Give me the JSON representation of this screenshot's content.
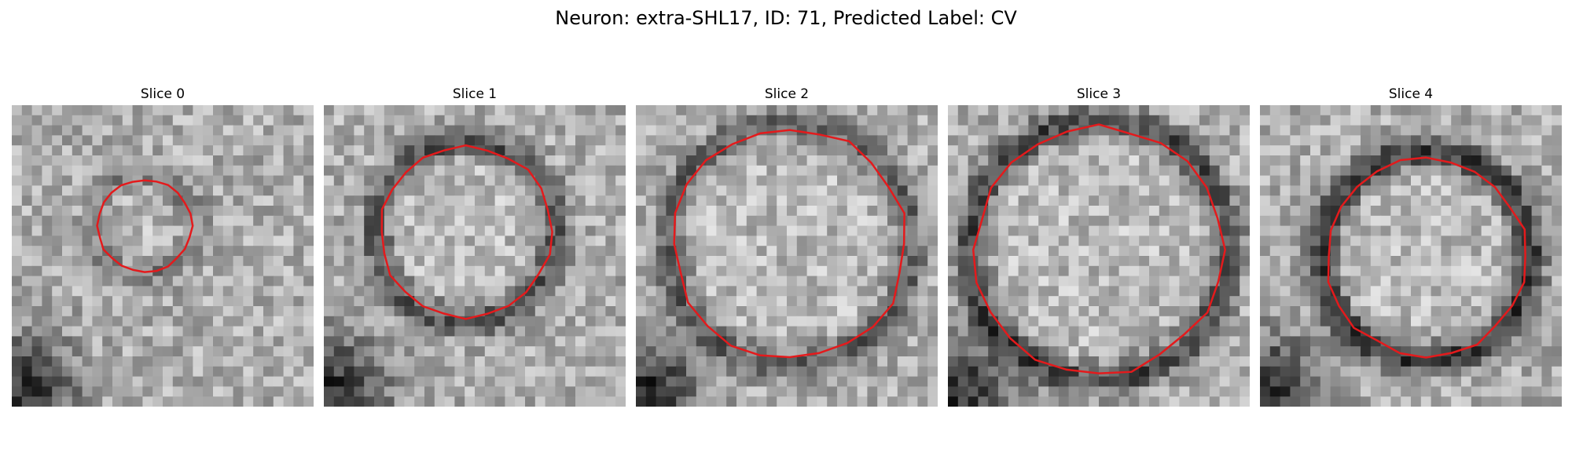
{
  "figure": {
    "title": "Neuron: extra-SHL17, ID: 71, Predicted Label: CV",
    "contour_color": "#e41a1c"
  },
  "panels": [
    {
      "title": "Slice 0",
      "contour_radius": 0.155,
      "contour_cx": 0.44,
      "contour_cy": 0.4,
      "ring_darkness": 0.18
    },
    {
      "title": "Slice 1",
      "contour_radius": 0.285,
      "contour_cx": 0.47,
      "contour_cy": 0.42,
      "ring_darkness": 0.35
    },
    {
      "title": "Slice 2",
      "contour_radius": 0.385,
      "contour_cx": 0.51,
      "contour_cy": 0.46,
      "ring_darkness": 0.3
    },
    {
      "title": "Slice 3",
      "contour_radius": 0.41,
      "contour_cx": 0.5,
      "contour_cy": 0.48,
      "ring_darkness": 0.4
    },
    {
      "title": "Slice 4",
      "contour_radius": 0.33,
      "contour_cx": 0.55,
      "contour_cy": 0.5,
      "ring_darkness": 0.45
    }
  ]
}
